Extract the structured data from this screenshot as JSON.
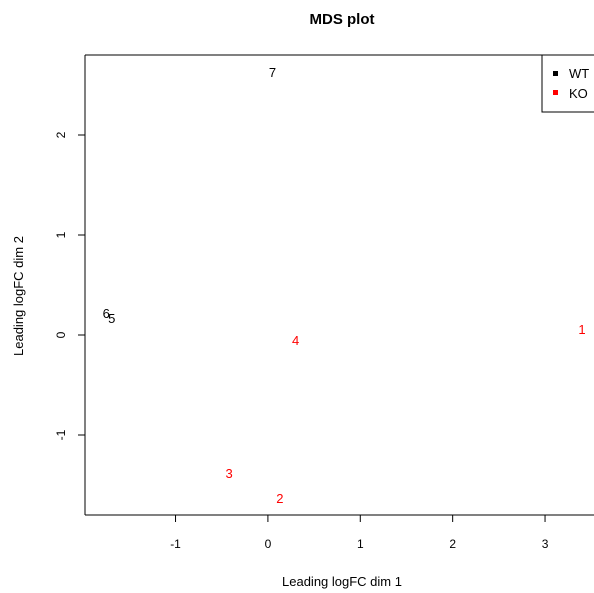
{
  "chart_data": {
    "type": "scatter",
    "title": "MDS plot",
    "xlabel": "Leading logFC dim 1",
    "ylabel": "Leading logFC dim 2",
    "xlim": [
      -1.98,
      3.53
    ],
    "ylim": [
      -1.8,
      2.8
    ],
    "xticks": [
      -1,
      0,
      1,
      2,
      3
    ],
    "yticks": [
      -1,
      0,
      1,
      2
    ],
    "grid": false,
    "legend_position": "top-right",
    "series": [
      {
        "name": "WT",
        "color": "#000000",
        "points": [
          {
            "label": "7",
            "x": 0.05,
            "y": 2.62
          },
          {
            "label": "6",
            "x": -1.75,
            "y": 0.21
          },
          {
            "label": "5",
            "x": -1.69,
            "y": 0.16
          }
        ]
      },
      {
        "name": "KO",
        "color": "#ff0000",
        "points": [
          {
            "label": "1",
            "x": 3.4,
            "y": 0.05
          },
          {
            "label": "4",
            "x": 0.3,
            "y": -0.06
          },
          {
            "label": "3",
            "x": -0.42,
            "y": -1.39
          },
          {
            "label": "2",
            "x": 0.13,
            "y": -1.64
          }
        ]
      }
    ]
  }
}
